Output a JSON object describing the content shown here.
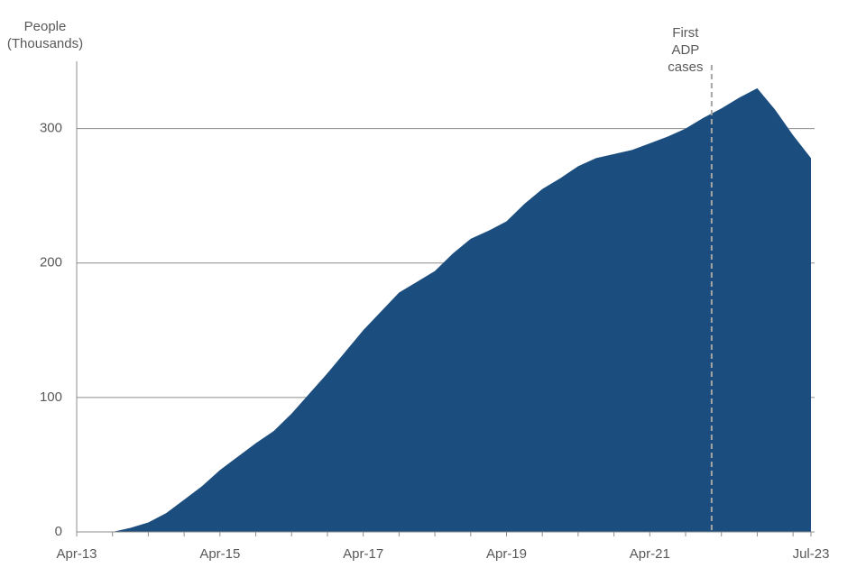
{
  "chart_data": {
    "type": "area",
    "y_label": [
      "People",
      "(Thousands)"
    ],
    "annotation": {
      "text": [
        "First",
        "ADP",
        "cases"
      ],
      "at": 35
    },
    "categories": [
      "Apr-13",
      null,
      null,
      null,
      null,
      null,
      null,
      null,
      "Apr-15",
      null,
      null,
      null,
      null,
      null,
      null,
      null,
      "Apr-17",
      null,
      null,
      null,
      null,
      null,
      null,
      null,
      "Apr-19",
      null,
      null,
      null,
      null,
      null,
      null,
      null,
      "Apr-21",
      null,
      null,
      null,
      null,
      null,
      null,
      null,
      null,
      "Jul-23"
    ],
    "values": [
      null,
      null,
      0,
      3,
      7,
      14,
      24,
      34,
      46,
      56,
      66,
      75,
      88,
      103,
      118,
      134,
      150,
      164,
      178,
      186,
      194,
      207,
      218,
      224,
      231,
      244,
      255,
      263,
      272,
      278,
      281,
      284,
      289,
      294,
      300,
      308,
      315,
      323,
      330,
      314,
      295,
      278
    ],
    "color": "#1b4d7e",
    "ylim": [
      0,
      350
    ],
    "yticks": [
      0,
      100,
      200,
      300
    ],
    "grid": true
  }
}
